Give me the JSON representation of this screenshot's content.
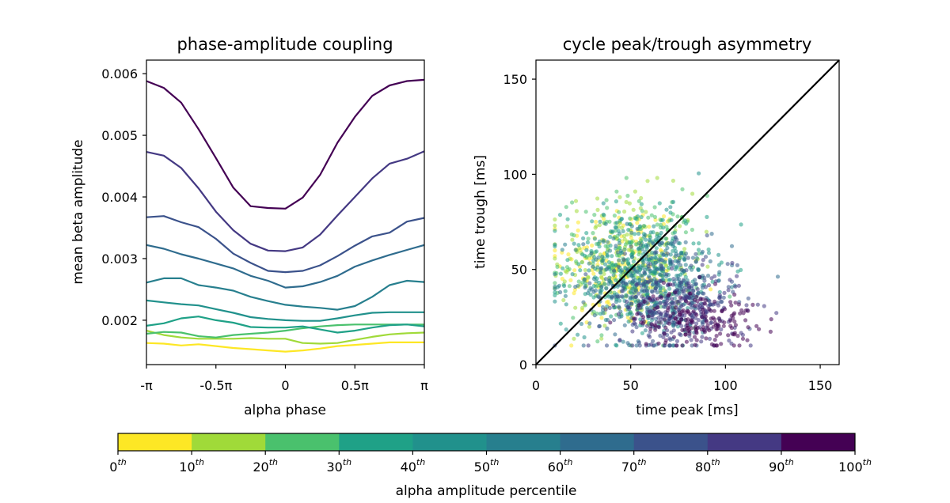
{
  "chart_data": [
    {
      "type": "line",
      "title": "phase-amplitude coupling",
      "xlabel": "alpha phase",
      "ylabel": "mean beta amplitude",
      "xlim": [
        -3.14159,
        3.14159
      ],
      "ylim": [
        0.00128,
        0.00622
      ],
      "xtick_labels": [
        "-π",
        "-0.5π",
        "0",
        "0.5π",
        "π"
      ],
      "ytick_labels": [
        "0.002",
        "0.003",
        "0.004",
        "0.005",
        "0.006"
      ],
      "grid": false,
      "x_phase_pi": [
        -1.0,
        -0.875,
        -0.75,
        -0.625,
        -0.5,
        -0.375,
        -0.25,
        -0.125,
        0.0,
        0.125,
        0.25,
        0.375,
        0.5,
        0.625,
        0.75,
        0.875,
        1.0
      ],
      "series": [
        {
          "color": "#fde725",
          "values": [
            0.00163,
            0.00162,
            0.00159,
            0.00161,
            0.00158,
            0.00155,
            0.00153,
            0.00151,
            0.00149,
            0.00151,
            0.00154,
            0.00158,
            0.0016,
            0.00162,
            0.00164,
            0.00164,
            0.00164
          ]
        },
        {
          "color": "#a0da39",
          "values": [
            0.00183,
            0.00176,
            0.00172,
            0.0017,
            0.0017,
            0.0017,
            0.00171,
            0.0017,
            0.0017,
            0.00163,
            0.00162,
            0.00163,
            0.00168,
            0.00173,
            0.00177,
            0.00179,
            0.0018
          ]
        },
        {
          "color": "#4ac16d",
          "values": [
            0.00178,
            0.00181,
            0.0018,
            0.00174,
            0.00172,
            0.00176,
            0.00178,
            0.0018,
            0.00183,
            0.00187,
            0.0019,
            0.00192,
            0.00193,
            0.00193,
            0.00193,
            0.00193,
            0.00193
          ]
        },
        {
          "color": "#1fa187",
          "values": [
            0.00191,
            0.00195,
            0.00203,
            0.00206,
            0.002,
            0.00196,
            0.00189,
            0.00188,
            0.00188,
            0.0019,
            0.00185,
            0.0018,
            0.00183,
            0.00188,
            0.00192,
            0.00193,
            0.0019
          ]
        },
        {
          "color": "#21918c",
          "values": [
            0.00232,
            0.00229,
            0.00226,
            0.00224,
            0.00218,
            0.00212,
            0.00205,
            0.00202,
            0.002,
            0.00199,
            0.00199,
            0.00203,
            0.00208,
            0.00212,
            0.00213,
            0.00213,
            0.00213
          ]
        },
        {
          "color": "#277f8e",
          "values": [
            0.00261,
            0.00268,
            0.00268,
            0.00257,
            0.00253,
            0.00248,
            0.00238,
            0.00231,
            0.00225,
            0.00222,
            0.0022,
            0.00217,
            0.00223,
            0.00238,
            0.00257,
            0.00264,
            0.00262
          ]
        },
        {
          "color": "#2f6c8e",
          "values": [
            0.00322,
            0.00316,
            0.00307,
            0.003,
            0.00292,
            0.00284,
            0.00272,
            0.00264,
            0.00253,
            0.00255,
            0.00262,
            0.00272,
            0.00287,
            0.00297,
            0.00306,
            0.00314,
            0.00322
          ]
        },
        {
          "color": "#3b528b",
          "values": [
            0.00367,
            0.00369,
            0.00359,
            0.00351,
            0.00332,
            0.00308,
            0.00293,
            0.0028,
            0.00278,
            0.0028,
            0.00289,
            0.00304,
            0.00321,
            0.00336,
            0.00342,
            0.0036,
            0.00366
          ]
        },
        {
          "color": "#443983",
          "values": [
            0.00473,
            0.00467,
            0.00447,
            0.00414,
            0.00376,
            0.00346,
            0.00324,
            0.00313,
            0.00312,
            0.00318,
            0.00339,
            0.0037,
            0.004,
            0.0043,
            0.00454,
            0.00462,
            0.00474
          ]
        },
        {
          "color": "#440154",
          "values": [
            0.00588,
            0.00577,
            0.00553,
            0.0051,
            0.00463,
            0.00415,
            0.00385,
            0.00382,
            0.00381,
            0.00399,
            0.00436,
            0.00488,
            0.0053,
            0.00564,
            0.00581,
            0.00588,
            0.0059
          ]
        }
      ]
    },
    {
      "type": "scatter",
      "title": "cycle peak/trough asymmetry",
      "xlabel": "time peak [ms]",
      "ylabel": "time trough [ms]",
      "xlim": [
        0,
        160
      ],
      "ylim": [
        0,
        160
      ],
      "xticks": [
        0,
        50,
        100,
        150
      ],
      "yticks": [
        0,
        50,
        100,
        150
      ],
      "grid": false,
      "reference_line": {
        "from": [
          0,
          0
        ],
        "to": [
          160,
          160
        ],
        "color": "#000000"
      },
      "point_count_approx": 1800,
      "marker_alpha": 0.55,
      "groups": [
        {
          "color": "#fde725",
          "percentile": "0-10",
          "center": [
            45,
            52
          ],
          "spread": [
            20,
            20
          ]
        },
        {
          "color": "#a0da39",
          "percentile": "10-20",
          "center": [
            48,
            55
          ],
          "spread": [
            21,
            21
          ]
        },
        {
          "color": "#4ac16d",
          "percentile": "20-30",
          "center": [
            50,
            55
          ],
          "spread": [
            22,
            20
          ]
        },
        {
          "color": "#1fa187",
          "percentile": "30-40",
          "center": [
            52,
            52
          ],
          "spread": [
            22,
            19
          ]
        },
        {
          "color": "#21918c",
          "percentile": "40-50",
          "center": [
            55,
            48
          ],
          "spread": [
            22,
            18
          ]
        },
        {
          "color": "#277f8e",
          "percentile": "50-60",
          "center": [
            60,
            44
          ],
          "spread": [
            23,
            17
          ]
        },
        {
          "color": "#2f6c8e",
          "percentile": "60-70",
          "center": [
            65,
            40
          ],
          "spread": [
            23,
            17
          ]
        },
        {
          "color": "#3b528b",
          "percentile": "70-80",
          "center": [
            70,
            35
          ],
          "spread": [
            22,
            15
          ]
        },
        {
          "color": "#443983",
          "percentile": "80-90",
          "center": [
            78,
            28
          ],
          "spread": [
            20,
            12
          ]
        },
        {
          "color": "#440154",
          "percentile": "90-100",
          "center": [
            85,
            24
          ],
          "spread": [
            18,
            9
          ]
        }
      ]
    },
    {
      "type": "colorbar",
      "label": "alpha amplitude percentile",
      "colors": [
        "#fde725",
        "#a0da39",
        "#4ac16d",
        "#1fa187",
        "#21918c",
        "#277f8e",
        "#2f6c8e",
        "#3b528b",
        "#443983",
        "#440154"
      ],
      "tick_labels": [
        {
          "base": "0",
          "sup": "th"
        },
        {
          "base": "10",
          "sup": "th"
        },
        {
          "base": "20",
          "sup": "th"
        },
        {
          "base": "30",
          "sup": "th"
        },
        {
          "base": "40",
          "sup": "th"
        },
        {
          "base": "50",
          "sup": "th"
        },
        {
          "base": "60",
          "sup": "th"
        },
        {
          "base": "70",
          "sup": "th"
        },
        {
          "base": "80",
          "sup": "th"
        },
        {
          "base": "90",
          "sup": "th"
        },
        {
          "base": "100",
          "sup": "th"
        }
      ]
    }
  ]
}
